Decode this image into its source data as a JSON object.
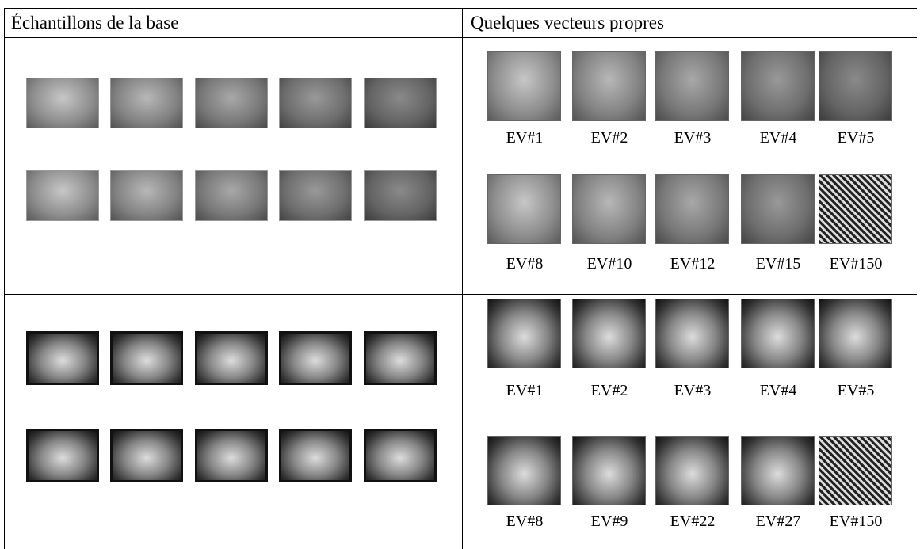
{
  "header": {
    "col1": "Échantillons de la base",
    "col2": "Quelques vecteurs propres"
  },
  "rows": [
    {
      "eigenvectors": [
        [
          "EV#1",
          "EV#2",
          "EV#3",
          "EV#4",
          "EV#5"
        ],
        [
          "EV#8",
          "EV#10",
          "EV#12",
          "EV#15",
          "EV#150"
        ]
      ]
    },
    {
      "eigenvectors": [
        [
          "EV#1",
          "EV#2",
          "EV#3",
          "EV#4",
          "EV#5"
        ],
        [
          "EV#8",
          "EV#9",
          "EV#22",
          "EV#27",
          "EV#150"
        ]
      ]
    }
  ]
}
